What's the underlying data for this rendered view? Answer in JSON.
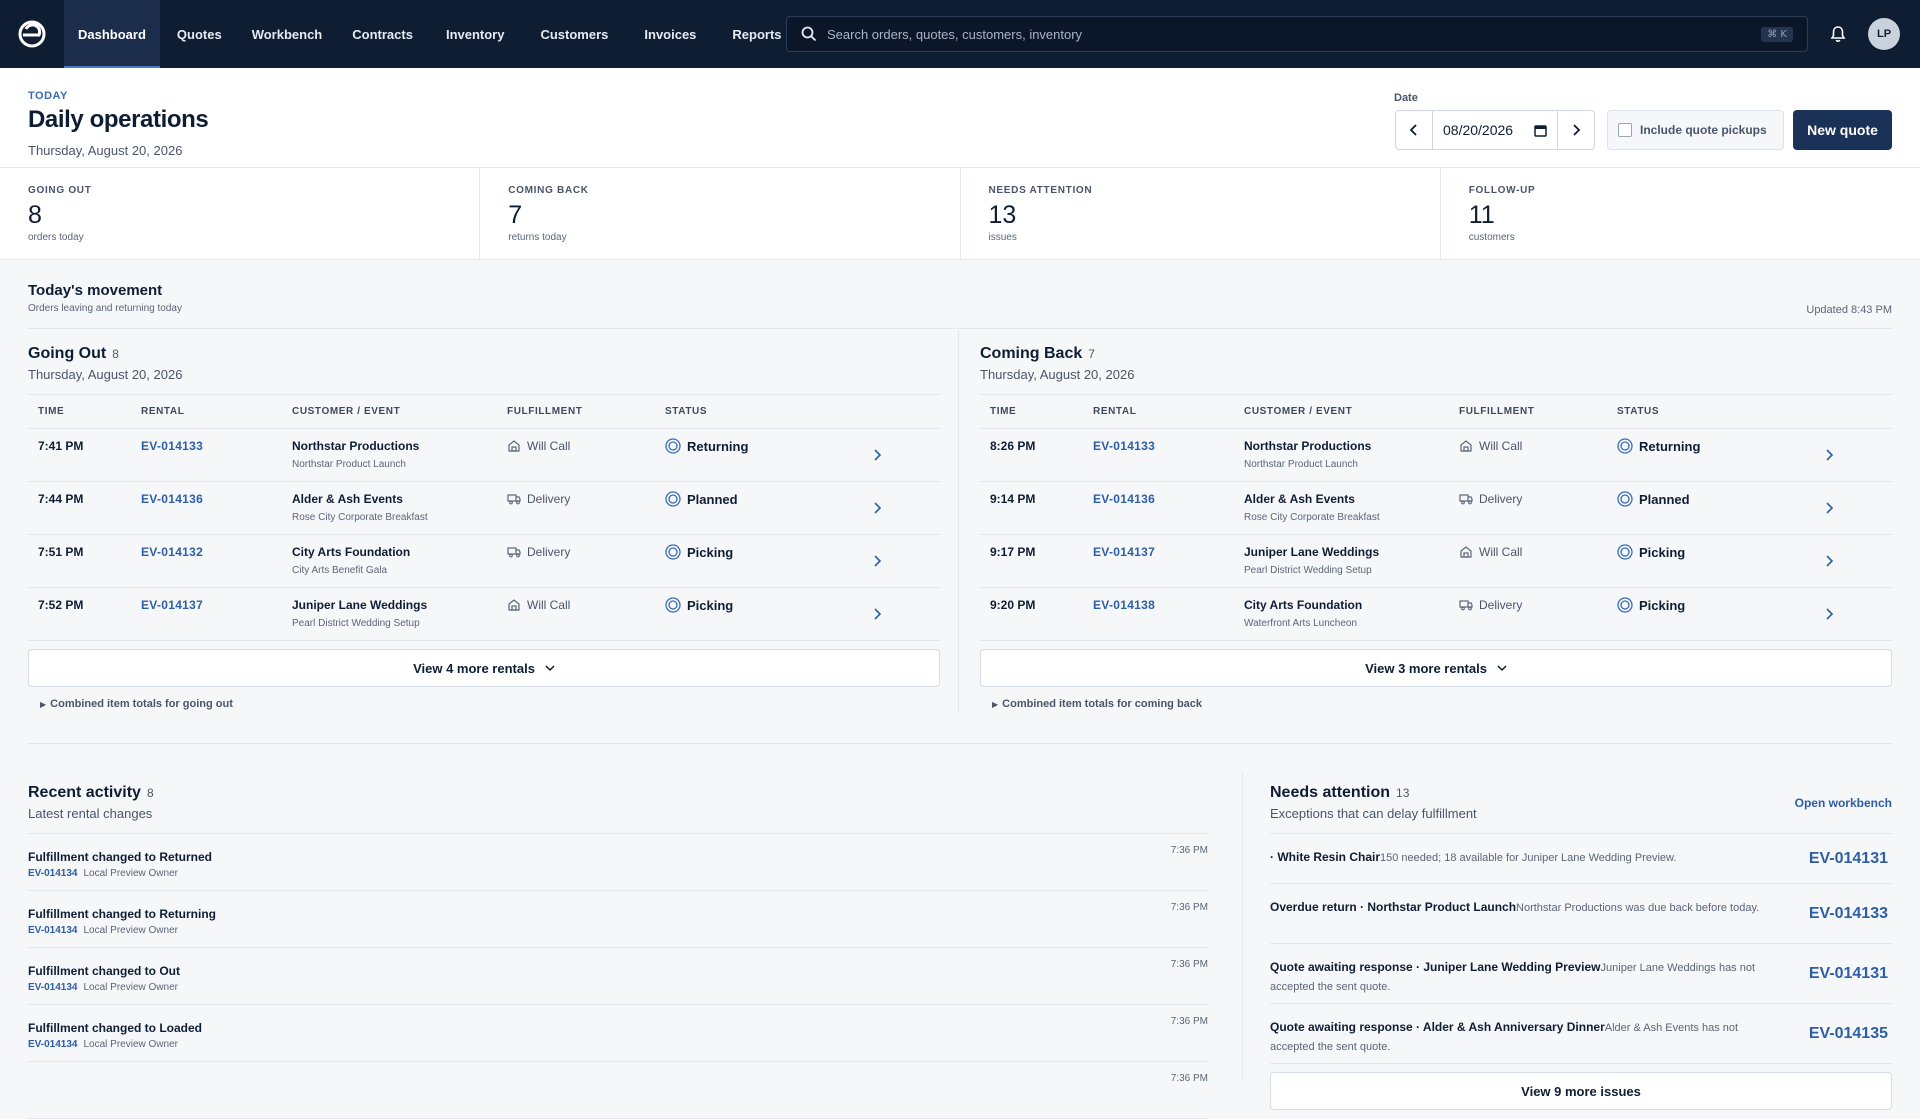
{
  "nav": {
    "tabs": [
      "Dashboard",
      "Quotes",
      "Workbench",
      "Contracts",
      "Inventory",
      "Customers",
      "Invoices",
      "Reports"
    ],
    "search_placeholder": "Search orders, quotes, customers, inventory",
    "search_shortcut": "⌘ K",
    "avatar_initials": "LP"
  },
  "header": {
    "eyebrow": "TODAY",
    "title": "Daily operations",
    "subtitle": "Thursday, August 20, 2026",
    "date_label": "Date",
    "date_value": "08/20/2026",
    "include_label": "Include quote pickups",
    "new_quote": "New quote"
  },
  "stats": [
    {
      "label": "GOING OUT",
      "value": "8",
      "caption": "orders today"
    },
    {
      "label": "COMING BACK",
      "value": "7",
      "caption": "returns today"
    },
    {
      "label": "NEEDS ATTENTION",
      "value": "13",
      "caption": "issues"
    },
    {
      "label": "FOLLOW-UP",
      "value": "11",
      "caption": "customers"
    }
  ],
  "movement": {
    "title": "Today's movement",
    "subtitle": "Orders leaving and returning today",
    "updated": "Updated 8:43 PM",
    "columns": [
      "TIME",
      "RENTAL",
      "CUSTOMER / EVENT",
      "FULFILLMENT",
      "STATUS"
    ],
    "going_out": {
      "title": "Going Out",
      "count": "8",
      "date": "Thursday, August 20, 2026",
      "rows": [
        {
          "time": "7:41 PM",
          "rental": "EV-014133",
          "customer": "Northstar Productions",
          "event": "Northstar Product Launch",
          "fulfillment": "Will Call",
          "status": "Returning"
        },
        {
          "time": "7:44 PM",
          "rental": "EV-014136",
          "customer": "Alder & Ash Events",
          "event": "Rose City Corporate Breakfast",
          "fulfillment": "Delivery",
          "status": "Planned"
        },
        {
          "time": "7:51 PM",
          "rental": "EV-014132",
          "customer": "City Arts Foundation",
          "event": "City Arts Benefit Gala",
          "fulfillment": "Delivery",
          "status": "Picking"
        },
        {
          "time": "7:52 PM",
          "rental": "EV-014137",
          "customer": "Juniper Lane Weddings",
          "event": "Pearl District Wedding Setup",
          "fulfillment": "Will Call",
          "status": "Picking"
        }
      ],
      "view_more": "View 4 more rentals",
      "combined": "Combined item totals for going out"
    },
    "coming_back": {
      "title": "Coming Back",
      "count": "7",
      "date": "Thursday, August 20, 2026",
      "rows": [
        {
          "time": "8:26 PM",
          "rental": "EV-014133",
          "customer": "Northstar Productions",
          "event": "Northstar Product Launch",
          "fulfillment": "Will Call",
          "status": "Returning"
        },
        {
          "time": "9:14 PM",
          "rental": "EV-014136",
          "customer": "Alder & Ash Events",
          "event": "Rose City Corporate Breakfast",
          "fulfillment": "Delivery",
          "status": "Planned"
        },
        {
          "time": "9:17 PM",
          "rental": "EV-014137",
          "customer": "Juniper Lane Weddings",
          "event": "Pearl District Wedding Setup",
          "fulfillment": "Will Call",
          "status": "Picking"
        },
        {
          "time": "9:20 PM",
          "rental": "EV-014138",
          "customer": "City Arts Foundation",
          "event": "Waterfront Arts Luncheon",
          "fulfillment": "Delivery",
          "status": "Picking"
        }
      ],
      "view_more": "View 3 more rentals",
      "combined": "Combined item totals for coming back"
    }
  },
  "activity": {
    "title": "Recent activity",
    "count": "8",
    "subtitle": "Latest rental changes",
    "items": [
      {
        "title": "Fulfillment changed to Returned",
        "ref": "EV-014134",
        "owner": "Local Preview Owner",
        "time": "7:36 PM"
      },
      {
        "title": "Fulfillment changed to Returning",
        "ref": "EV-014134",
        "owner": "Local Preview Owner",
        "time": "7:36 PM"
      },
      {
        "title": "Fulfillment changed to Out",
        "ref": "EV-014134",
        "owner": "Local Preview Owner",
        "time": "7:36 PM"
      },
      {
        "title": "Fulfillment changed to Loaded",
        "ref": "EV-014134",
        "owner": "Local Preview Owner",
        "time": "7:36 PM"
      },
      {
        "title": "",
        "ref": "",
        "owner": "",
        "time": "7:36 PM"
      }
    ]
  },
  "attention": {
    "title": "Needs attention",
    "count": "13",
    "subtitle": "Exceptions that can delay fulfillment",
    "open_workbench": "Open workbench",
    "items": [
      {
        "title": "· White Resin Chair",
        "desc": "150 needed; 18 available for Juniper Lane Wedding Preview.",
        "ref": "EV-014131"
      },
      {
        "title": "Overdue return · Northstar Product Launch",
        "desc": "Northstar Productions was due back before today.",
        "ref": "EV-014133"
      },
      {
        "title": "Quote awaiting response · Juniper Lane Wedding Preview",
        "desc": "Juniper Lane Weddings has not accepted the sent quote.",
        "ref": "EV-014131"
      },
      {
        "title": "Quote awaiting response · Alder & Ash Anniversary Dinner",
        "desc": "Alder & Ash Events has not accepted the sent quote.",
        "ref": "EV-014135"
      }
    ],
    "view_more": "View 9 more issues"
  },
  "colors": {
    "nav_bg": "#0f1d33",
    "accent": "#2d5ea6",
    "primary_button": "#1a3258"
  }
}
